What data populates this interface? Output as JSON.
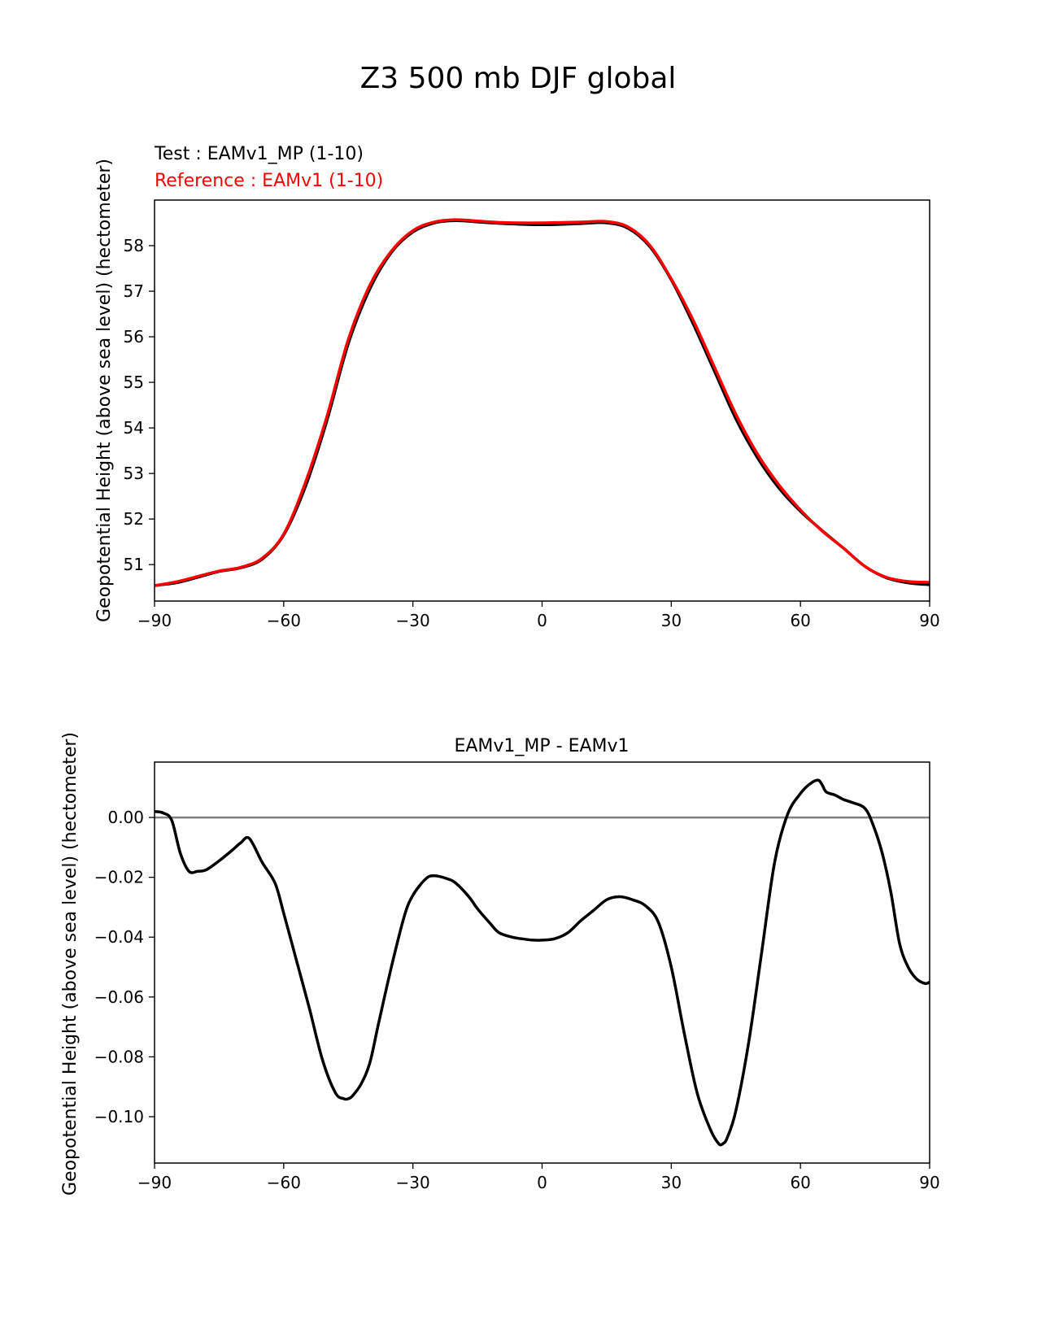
{
  "figure": {
    "title": "Z3 500 mb DJF global"
  },
  "chart_data": [
    {
      "type": "line",
      "test_label": "Test : EAMv1_MP (1-10)",
      "reference_label": "Reference : EAMv1 (1-10)",
      "xlabel": "",
      "ylabel": "Geopotential Height (above sea level) (hectometer)",
      "xlim": [
        -90,
        90
      ],
      "ylim": [
        50.2,
        59.0
      ],
      "xticks": [
        -90,
        -60,
        -30,
        0,
        30,
        60,
        90
      ],
      "yticks": [
        51,
        52,
        53,
        54,
        55,
        56,
        57,
        58
      ],
      "x": [
        -90,
        -85,
        -80,
        -75,
        -70,
        -65,
        -60,
        -55,
        -50,
        -45,
        -40,
        -35,
        -30,
        -25,
        -20,
        -15,
        -10,
        -5,
        0,
        5,
        10,
        15,
        20,
        25,
        30,
        35,
        40,
        45,
        50,
        55,
        60,
        65,
        70,
        75,
        80,
        85,
        90
      ],
      "series": [
        {
          "name": "Test : EAMv1_MP (1-10)",
          "color": "#000000",
          "values": [
            50.54,
            50.6,
            50.72,
            50.85,
            50.93,
            51.12,
            51.65,
            52.7,
            54.15,
            55.85,
            57.05,
            57.85,
            58.3,
            58.5,
            58.55,
            58.52,
            58.49,
            58.47,
            58.46,
            58.47,
            58.49,
            58.5,
            58.38,
            57.98,
            57.25,
            56.3,
            55.25,
            54.2,
            53.35,
            52.68,
            52.17,
            51.75,
            51.36,
            50.96,
            50.71,
            50.6,
            50.56
          ]
        },
        {
          "name": "Reference : EAMv1 (1-10)",
          "color": "#ff0000",
          "values": [
            50.54,
            50.62,
            50.74,
            50.86,
            50.94,
            51.14,
            51.67,
            52.79,
            54.24,
            55.94,
            57.13,
            57.88,
            58.33,
            58.52,
            58.57,
            58.54,
            58.51,
            58.5,
            58.5,
            58.51,
            58.52,
            58.53,
            58.41,
            58.01,
            57.27,
            56.38,
            55.34,
            54.3,
            53.43,
            52.75,
            52.2,
            51.74,
            51.36,
            50.96,
            50.72,
            50.63,
            50.61
          ]
        }
      ]
    },
    {
      "type": "line",
      "title": "EAMv1_MP - EAMv1",
      "xlabel": "",
      "ylabel": "Geopotential Height (above sea level) (hectometer)",
      "xlim": [
        -90,
        90
      ],
      "ylim": [
        -0.1155,
        0.0185
      ],
      "xticks": [
        -90,
        -60,
        -30,
        0,
        30,
        60,
        90
      ],
      "yticks": [
        0.0,
        -0.02,
        -0.04,
        -0.06,
        -0.08,
        -0.1
      ],
      "ytick_labels": [
        "0.00",
        "−0.02",
        "−0.04",
        "−0.06",
        "−0.08",
        "−0.10"
      ],
      "zero_line_color": "#808080",
      "x": [
        -90,
        -88,
        -86,
        -84,
        -82,
        -80,
        -78,
        -75,
        -72,
        -70,
        -68,
        -65,
        -62,
        -60,
        -57,
        -54,
        -51,
        -48,
        -46,
        -45,
        -44,
        -42,
        -40,
        -38,
        -35,
        -32,
        -30,
        -27,
        -25,
        -22,
        -20,
        -17,
        -15,
        -12,
        -10,
        -7,
        -5,
        -2,
        0,
        3,
        6,
        9,
        12,
        15,
        18,
        21,
        24,
        27,
        30,
        33,
        36,
        39,
        41,
        42,
        43,
        45,
        48,
        51,
        54,
        57,
        60,
        62,
        64,
        65,
        66,
        68,
        70,
        72,
        75,
        77,
        79,
        81,
        83,
        85,
        87,
        89,
        90
      ],
      "series": [
        {
          "name": "EAMv1_MP - EAMv1",
          "color": "#000000",
          "values": [
            0.002,
            0.0015,
            -0.001,
            -0.012,
            -0.018,
            -0.018,
            -0.0175,
            -0.0145,
            -0.011,
            -0.0085,
            -0.007,
            -0.015,
            -0.022,
            -0.032,
            -0.048,
            -0.064,
            -0.081,
            -0.092,
            -0.094,
            -0.094,
            -0.093,
            -0.089,
            -0.082,
            -0.069,
            -0.05,
            -0.033,
            -0.026,
            -0.0205,
            -0.0195,
            -0.0205,
            -0.022,
            -0.0265,
            -0.0305,
            -0.0355,
            -0.0385,
            -0.04,
            -0.0405,
            -0.041,
            -0.041,
            -0.0405,
            -0.0385,
            -0.0345,
            -0.031,
            -0.0275,
            -0.0265,
            -0.0275,
            -0.0295,
            -0.035,
            -0.05,
            -0.072,
            -0.092,
            -0.104,
            -0.109,
            -0.109,
            -0.107,
            -0.098,
            -0.075,
            -0.045,
            -0.015,
            0.001,
            0.008,
            0.011,
            0.0125,
            0.011,
            0.0085,
            0.0075,
            0.006,
            0.005,
            0.003,
            -0.003,
            -0.012,
            -0.025,
            -0.042,
            -0.05,
            -0.054,
            -0.0555,
            -0.055
          ]
        }
      ]
    }
  ]
}
